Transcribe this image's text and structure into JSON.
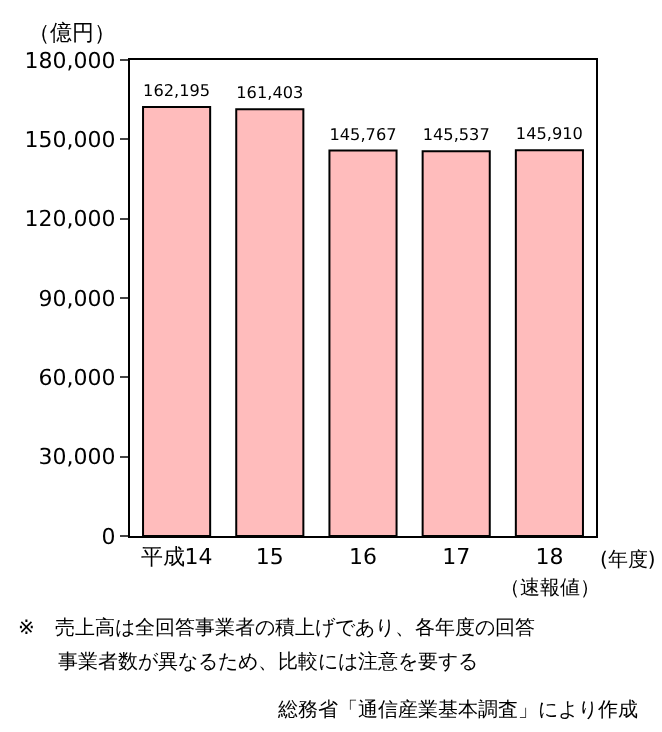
{
  "chart_data": {
    "type": "bar",
    "categories": [
      "平成14",
      "15",
      "16",
      "17",
      "18"
    ],
    "values": [
      162195,
      161403,
      145767,
      145537,
      145910
    ],
    "value_labels": [
      "162,195",
      "161,403",
      "145,767",
      "145,537",
      "145,910"
    ],
    "color": "#ffbcbc",
    "ylabel": "（億円）",
    "xlabel": "(年度)",
    "ylim": [
      0,
      180000
    ],
    "yticks": [
      {
        "value": 0,
        "label": "0"
      },
      {
        "value": 30000,
        "label": "30,000"
      },
      {
        "value": 60000,
        "label": "60,000"
      },
      {
        "value": 90000,
        "label": "90,000"
      },
      {
        "value": 120000,
        "label": "120,000"
      },
      {
        "value": 150000,
        "label": "150,000"
      },
      {
        "value": 180000,
        "label": "180,000"
      }
    ],
    "annotations": [
      "（速報値）",
      "※　売上高は全回答事業者の積上げであり、各年度の回答",
      "　　事業者数が異なるため、比較には注意を要する",
      "総務省「通信産業基本調査」により作成"
    ]
  }
}
